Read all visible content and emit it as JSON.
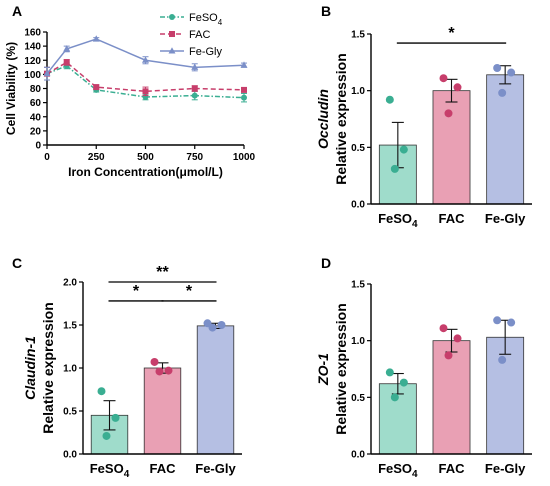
{
  "panels": [
    {
      "id": "A",
      "panel_label": "A",
      "chart_data": {
        "type": "line",
        "x": [
          0,
          100,
          250,
          500,
          750,
          1000
        ],
        "xlabel": "Iron Concentration(μmol/L)",
        "ylabel": "Cell Viability (%)",
        "xlim": [
          0,
          1000
        ],
        "ylim": [
          0,
          160
        ],
        "xticks": [
          0,
          250,
          500,
          750,
          1000
        ],
        "yticks": [
          0,
          20,
          40,
          60,
          80,
          100,
          120,
          140,
          160
        ],
        "legend_position": "top-right",
        "series": [
          {
            "name": "FeSO4",
            "name_main": "FeSO",
            "name_sub": "4",
            "color": "#3aae92",
            "dash": "dashdot",
            "marker": "circle",
            "values": [
              101,
              112,
              78,
              68,
              70,
              67
            ],
            "errors": [
              9,
              4,
              3,
              4,
              6,
              6
            ]
          },
          {
            "name": "FAC",
            "name_main": "FAC",
            "name_sub": "",
            "color": "#c73e6b",
            "dash": "dash",
            "marker": "square",
            "values": [
              101,
              117,
              82,
              76,
              80,
              78
            ],
            "errors": [
              9,
              4,
              3,
              6,
              4,
              3
            ]
          },
          {
            "name": "Fe-Gly",
            "name_main": "Fe-Gly",
            "name_sub": "",
            "color": "#7b8fc8",
            "dash": "solid",
            "marker": "triangle",
            "values": [
              101,
              136,
              150,
              120,
              110,
              113
            ],
            "errors": [
              9,
              4,
              2,
              5,
              5,
              3
            ]
          }
        ]
      }
    },
    {
      "id": "B",
      "panel_label": "B",
      "chart_data": {
        "type": "bar",
        "categories": [
          "FeSO4",
          "FAC",
          "Fe-Gly"
        ],
        "category_main": [
          "FeSO",
          "FAC",
          "Fe-Gly"
        ],
        "category_sub": [
          "4",
          "",
          ""
        ],
        "values": [
          0.52,
          1.0,
          1.14
        ],
        "errors": [
          0.2,
          0.1,
          0.08
        ],
        "points": [
          [
            0.92,
            0.48,
            0.31
          ],
          [
            1.11,
            1.03,
            0.8
          ],
          [
            1.2,
            1.16,
            0.98
          ]
        ],
        "ylabel_gene": "Occludin",
        "ylabel": "Relative expression",
        "ylim": [
          0,
          1.5
        ],
        "yticks": [
          "0.0",
          "0.5",
          "1.0",
          "1.5"
        ],
        "significance": [
          {
            "from": 0,
            "to": 2,
            "label": "*",
            "level": 1.42
          }
        ]
      }
    },
    {
      "id": "C",
      "panel_label": "C",
      "chart_data": {
        "type": "bar",
        "categories": [
          "FeSO4",
          "FAC",
          "Fe-Gly"
        ],
        "category_main": [
          "FeSO",
          "FAC",
          "Fe-Gly"
        ],
        "category_sub": [
          "4",
          "",
          ""
        ],
        "values": [
          0.45,
          1.0,
          1.49
        ],
        "errors": [
          0.17,
          0.06,
          0.03
        ],
        "points": [
          [
            0.73,
            0.42,
            0.21
          ],
          [
            1.07,
            0.97,
            0.96
          ],
          [
            1.52,
            1.5,
            1.47
          ]
        ],
        "ylabel_gene": "Claudin-1",
        "ylabel": "Relative expression",
        "ylim": [
          0,
          2.0
        ],
        "yticks": [
          "0.0",
          "0.5",
          "1.0",
          "1.5",
          "2.0"
        ],
        "significance": [
          {
            "from": 0,
            "to": 2,
            "label": "**",
            "level": 2.0
          },
          {
            "from": 0,
            "to": 1,
            "label": "*",
            "level": 1.78
          },
          {
            "from": 1,
            "to": 2,
            "label": "*",
            "level": 1.78
          }
        ]
      }
    },
    {
      "id": "D",
      "panel_label": "D",
      "chart_data": {
        "type": "bar",
        "categories": [
          "FeSO4",
          "FAC",
          "Fe-Gly"
        ],
        "category_main": [
          "FeSO",
          "FAC",
          "Fe-Gly"
        ],
        "category_sub": [
          "4",
          "",
          ""
        ],
        "values": [
          0.62,
          1.0,
          1.03
        ],
        "errors": [
          0.09,
          0.1,
          0.15
        ],
        "points": [
          [
            0.72,
            0.63,
            0.5
          ],
          [
            1.11,
            1.02,
            0.87
          ],
          [
            1.18,
            1.16,
            0.83
          ]
        ],
        "ylabel_gene": "ZO-1",
        "ylabel": "Relative expression",
        "ylim": [
          0,
          1.5
        ],
        "yticks": [
          "0.0",
          "0.5",
          "1.0",
          "1.5"
        ],
        "significance": []
      }
    }
  ],
  "bar_colors": {
    "fill": [
      "#9fdccb",
      "#e9a0b4",
      "#b5bfe3"
    ],
    "point": [
      "#3aae92",
      "#c73e6b",
      "#7b8fc8"
    ]
  }
}
